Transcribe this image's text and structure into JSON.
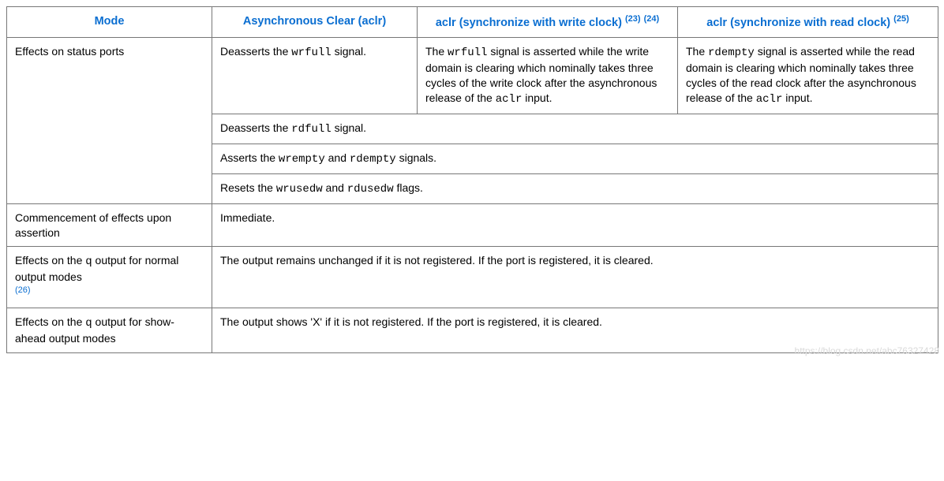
{
  "headers": {
    "mode": "Mode",
    "aclr": "Asynchronous Clear (aclr)",
    "aclr_write_pre": "aclr (synchronize with write clock) ",
    "aclr_write_ref1": "(23)",
    "aclr_write_ref2": "(24)",
    "aclr_read_pre": "aclr (synchronize with read clock) ",
    "aclr_read_ref": "(25)"
  },
  "row1": {
    "mode": "Effects on status ports",
    "aclr_pre": "Deasserts the ",
    "aclr_code": "wrfull",
    "aclr_post": " signal.",
    "write_t1": "The ",
    "write_c1": "wrfull",
    "write_t2": " signal is asserted while the write domain is clearing which nominally takes three cycles of the write clock after the asynchronous release of the ",
    "write_c2": "aclr",
    "write_t3": " input.",
    "read_t1": "The ",
    "read_c1": "rdempty",
    "read_t2": " signal is asserted while the read domain is clearing which nominally takes three cycles of the read clock after the asynchronous release of the ",
    "read_c2": "aclr",
    "read_t3": " input."
  },
  "row2": {
    "t1": "Deasserts the ",
    "c1": "rdfull",
    "t2": " signal."
  },
  "row3": {
    "t1": "Asserts the ",
    "c1": "wrempty",
    "t2": " and ",
    "c2": "rdempty",
    "t3": " signals."
  },
  "row4": {
    "t1": "Resets the ",
    "c1": "wrusedw",
    "t2": " and ",
    "c2": "rdusedw",
    "t3": " flags."
  },
  "row5": {
    "mode": "Commencement of effects upon assertion",
    "val": "Immediate."
  },
  "row6": {
    "mode_t1": "Effects on the ",
    "mode_c1": "q",
    "mode_t2": " output for normal output modes ",
    "mode_ref": "(26)",
    "val": "The output remains unchanged if it is not registered. If the port is registered, it is cleared."
  },
  "row7": {
    "mode_t1": "Effects on the ",
    "mode_c1": "q",
    "mode_t2": " output for show-ahead output modes",
    "val": "The output shows 'X' if it is not registered. If the port is registered, it is cleared."
  },
  "watermark": "https://blog.csdn.net/abc76327428"
}
